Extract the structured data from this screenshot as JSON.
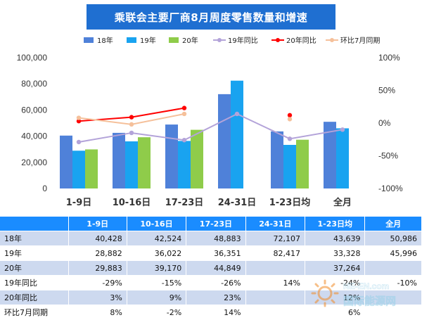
{
  "chart_data": {
    "type": "bar",
    "title": "乘联会主要厂商8月周度零售数量和增速",
    "categories": [
      "1-9日",
      "10-16日",
      "17-23日",
      "24-31日",
      "1-23日均",
      "全月"
    ],
    "bar_series": [
      {
        "name": "18年",
        "color": "#4f81d9",
        "values": [
          40428,
          42524,
          48883,
          72107,
          43639,
          50986
        ]
      },
      {
        "name": "19年",
        "color": "#19a3f0",
        "values": [
          28882,
          36022,
          36351,
          82417,
          33328,
          45996
        ]
      },
      {
        "name": "20年",
        "color": "#8fcc4a",
        "values": [
          29883,
          39170,
          44849,
          null,
          37264,
          null
        ]
      }
    ],
    "line_series": [
      {
        "name": "19年同比",
        "color": "#b3a3d9",
        "values": [
          -29,
          -15,
          -26,
          14,
          -24,
          -10
        ]
      },
      {
        "name": "20年同比",
        "color": "#ff0000",
        "values": [
          3,
          9,
          23,
          null,
          12,
          null
        ]
      },
      {
        "name": "环比7月同期",
        "color": "#f5c09a",
        "values": [
          8,
          -2,
          14,
          null,
          6,
          null
        ]
      }
    ],
    "left_axis": {
      "min": 0,
      "max": 100000,
      "ticks": [
        "0",
        "20,000",
        "40,000",
        "60,000",
        "80,000",
        "100,000"
      ]
    },
    "right_axis": {
      "min": -100,
      "max": 100,
      "ticks": [
        "-100%",
        "-50%",
        "0%",
        "50%",
        "100%"
      ]
    },
    "legend_position": "top",
    "grid": false
  },
  "table": {
    "headers": [
      "",
      "1-9日",
      "10-16日",
      "17-23日",
      "24-31日",
      "1-23日均",
      "全月"
    ],
    "rows": [
      {
        "label": "18年",
        "cells": [
          "40,428",
          "42,524",
          "48,883",
          "72,107",
          "43,639",
          "50,986"
        ]
      },
      {
        "label": "19年",
        "cells": [
          "28,882",
          "36,022",
          "36,351",
          "82,417",
          "33,328",
          "45,996"
        ]
      },
      {
        "label": "20年",
        "cells": [
          "29,883",
          "39,170",
          "44,849",
          "",
          "37,264",
          ""
        ]
      },
      {
        "label": "19年同比",
        "cells": [
          "-29%",
          "-15%",
          "-26%",
          "14%",
          "-24%",
          "-10%"
        ]
      },
      {
        "label": "20年同比",
        "cells": [
          "3%",
          "9%",
          "23%",
          "",
          "12%",
          ""
        ]
      },
      {
        "label": "环比7月同期",
        "cells": [
          "8%",
          "-2%",
          "14%",
          "",
          "6%",
          ""
        ]
      }
    ]
  },
  "watermark": {
    "text_en": "NE-EN.com",
    "text_cn": "国际能源网"
  }
}
